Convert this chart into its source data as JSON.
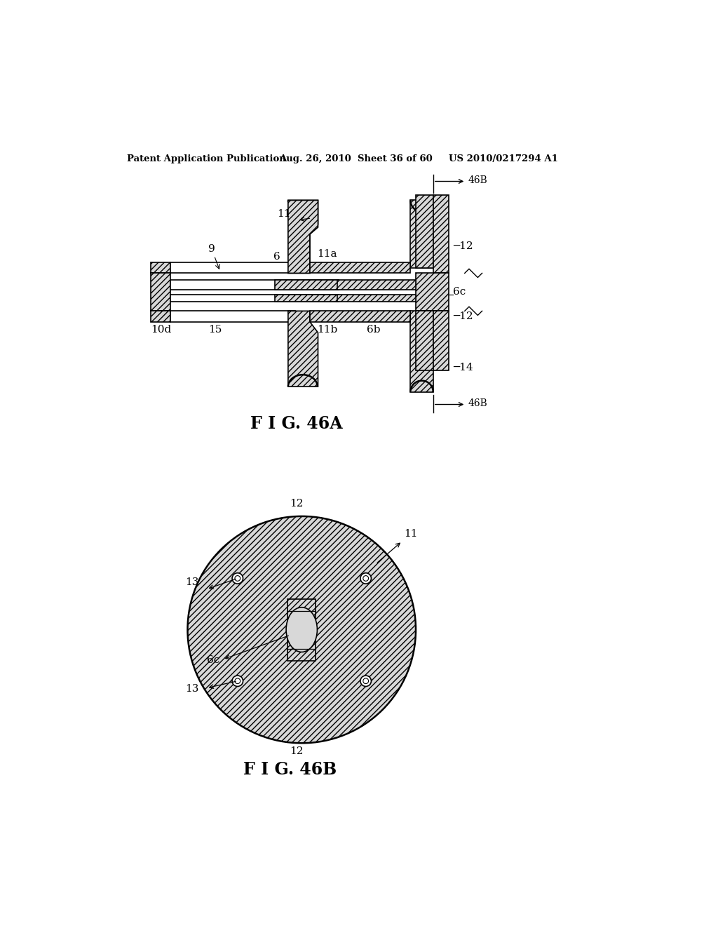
{
  "bg_color": "#ffffff",
  "header_text": "Patent Application Publication",
  "header_date": "Aug. 26, 2010  Sheet 36 of 60",
  "header_patent": "US 2010/0217294 A1",
  "fig_a_label": "F I G. 46A",
  "fig_b_label": "F I G. 46B",
  "hatch_pattern": "////",
  "line_color": "#000000",
  "hatch_face": "#d8d8d8"
}
